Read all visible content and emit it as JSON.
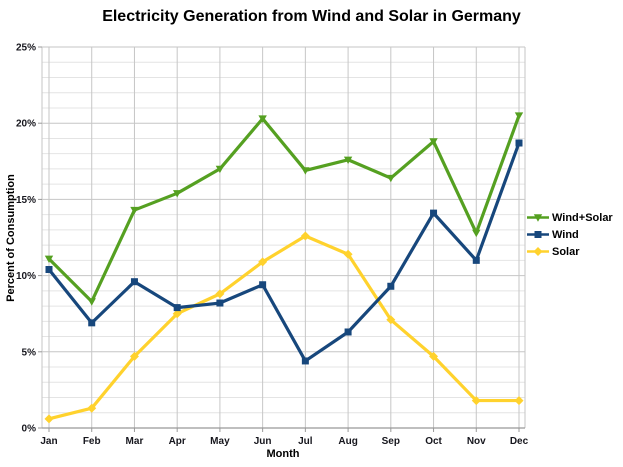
{
  "chart_data": {
    "type": "line",
    "title": "Electricity Generation from Wind and Solar in Germany",
    "xlabel": "Month",
    "ylabel": "Percent of Consumption",
    "categories": [
      "Jan",
      "Feb",
      "Mar",
      "Apr",
      "May",
      "Jun",
      "Jul",
      "Aug",
      "Sep",
      "Oct",
      "Nov",
      "Dec"
    ],
    "ylim": [
      0,
      25
    ],
    "y_major_ticks": [
      0,
      5,
      10,
      15,
      20,
      25
    ],
    "y_tick_labels": [
      "0%",
      "5%",
      "10%",
      "15%",
      "20%",
      "25%"
    ],
    "y_minor_step": 1,
    "grid": "major-and-minor-horizontal, vertical-at-each-month",
    "legend_position": "right",
    "series": [
      {
        "name": "Wind+Solar",
        "color": "#55A021",
        "marker": "triangle-down",
        "values": [
          11.1,
          8.3,
          14.3,
          15.4,
          17.0,
          20.3,
          16.9,
          17.6,
          16.4,
          18.8,
          12.8,
          20.5
        ]
      },
      {
        "name": "Wind",
        "color": "#17477C",
        "marker": "square",
        "values": [
          10.4,
          6.9,
          9.6,
          7.9,
          8.2,
          9.4,
          4.4,
          6.3,
          9.3,
          14.1,
          11.0,
          18.7
        ]
      },
      {
        "name": "Solar",
        "color": "#FFD22D",
        "marker": "diamond",
        "values": [
          0.6,
          1.3,
          4.7,
          7.5,
          8.8,
          10.9,
          12.6,
          11.4,
          7.1,
          4.7,
          1.8,
          1.8
        ]
      }
    ],
    "grid_colors": {
      "minor": "#E4E4E4",
      "major": "#C6C6C6",
      "axis": "#999999"
    }
  }
}
